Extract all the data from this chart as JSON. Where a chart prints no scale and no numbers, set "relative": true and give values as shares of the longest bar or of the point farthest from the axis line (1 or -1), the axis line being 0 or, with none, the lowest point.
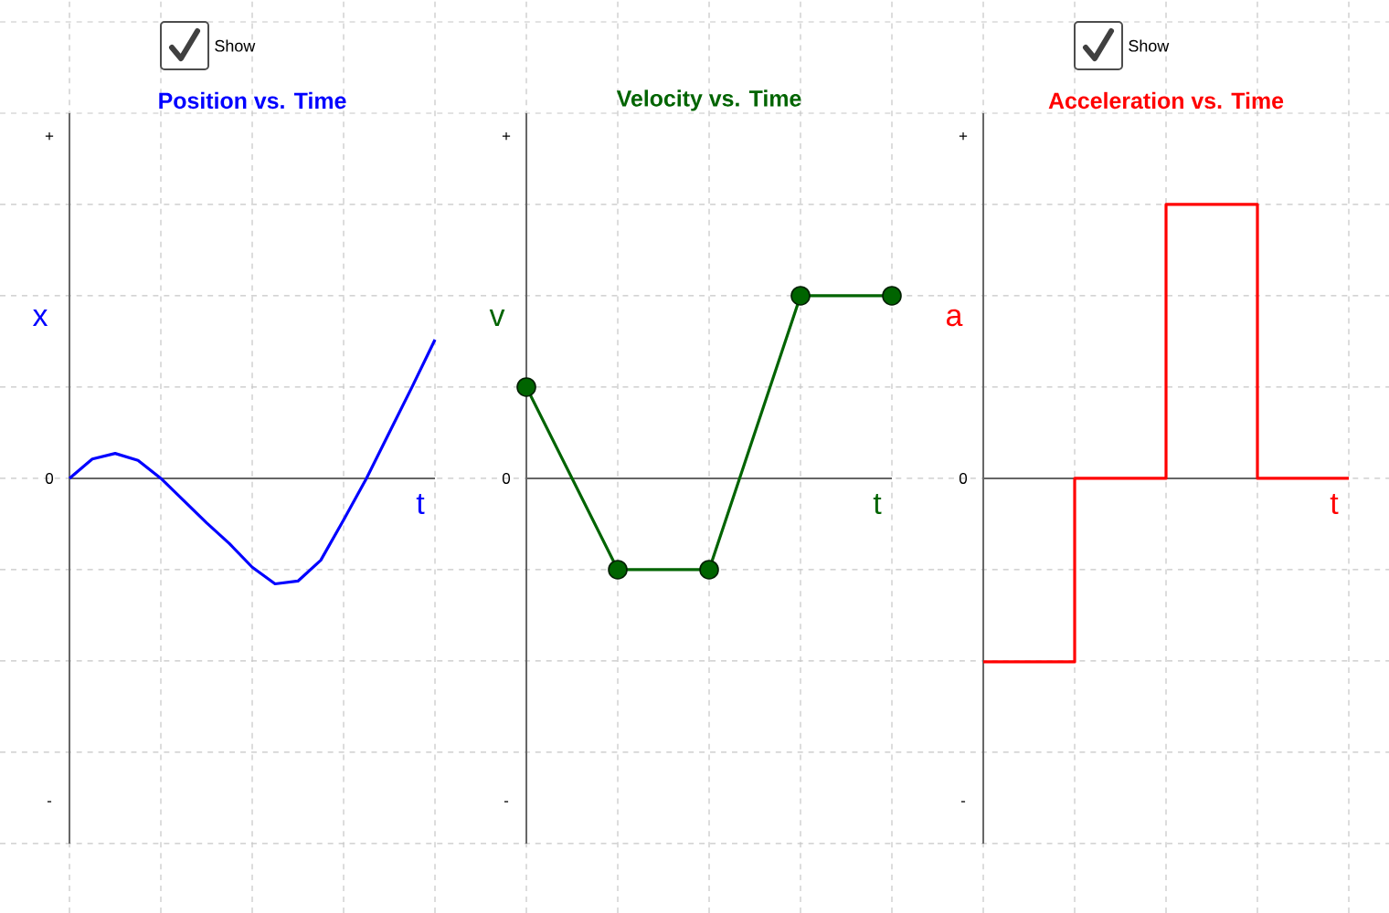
{
  "chart_data": [
    {
      "type": "line",
      "title": "Position vs. Time",
      "xlabel": "t",
      "ylabel": "x",
      "relative": true,
      "grid": true,
      "marker": "none",
      "annotations": [
        "Show",
        "+",
        "0",
        "-"
      ],
      "categories": [
        null,
        null,
        null,
        null,
        null,
        null,
        null,
        null,
        null,
        null,
        null,
        null,
        null,
        null,
        null,
        null,
        null
      ],
      "series": [
        {
          "color": "#0000ff",
          "values": [
            0,
            0.14,
            0.18,
            0.13,
            0,
            -0.16,
            -0.32,
            -0.47,
            -0.64,
            -0.76,
            -0.74,
            -0.59,
            -0.3,
            0,
            0.33,
            0.66,
            1
          ]
        }
      ]
    },
    {
      "type": "line",
      "title": "Velocity vs. Time",
      "xlabel": "t",
      "ylabel": "v",
      "relative": true,
      "grid": true,
      "marker": "circle",
      "annotations": [
        "+",
        "0",
        "-"
      ],
      "categories": [
        null,
        null,
        null,
        null,
        null
      ],
      "series": [
        {
          "color": "#006400",
          "values": [
            0.5,
            -0.5,
            -0.5,
            1,
            1
          ]
        }
      ]
    },
    {
      "type": "step",
      "title": "Acceleration vs. Time",
      "xlabel": "t",
      "ylabel": "a",
      "relative": true,
      "grid": true,
      "marker": "none",
      "annotations": [
        "Show",
        "+",
        "0",
        "-"
      ],
      "categories": [
        null,
        null,
        null,
        null,
        null
      ],
      "series": [
        {
          "color": "#ff0000",
          "values": [
            -0.67,
            0,
            1,
            0,
            0
          ]
        }
      ]
    }
  ]
}
